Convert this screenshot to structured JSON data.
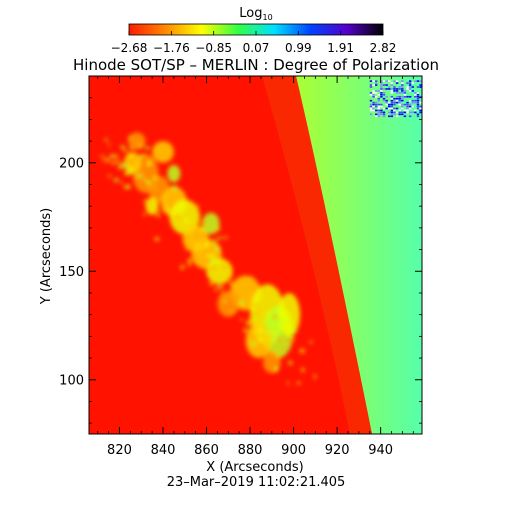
{
  "chart_data": {
    "type": "heatmap",
    "title": "Hinode SOT/SP – MERLIN : Degree of Polarization",
    "xlabel": "X (Arcseconds)",
    "ylabel": "Y (Arcseconds)",
    "timestamp": "23–Mar–2019 11:02:21.405",
    "xlim": [
      806,
      959
    ],
    "ylim": [
      75,
      240
    ],
    "x_ticks": [
      820,
      840,
      860,
      880,
      900,
      920,
      940
    ],
    "y_ticks": [
      100,
      150,
      200
    ],
    "colorbar": {
      "label": "Log",
      "label_subscript": "10",
      "min": -2.68,
      "max": 2.82,
      "ticks": [
        "−2.68",
        "−1.76",
        "−0.85",
        "0.07",
        "0.99",
        "1.91",
        "2.82"
      ],
      "stops": [
        "#ff1a00",
        "#ff8800",
        "#ffff00",
        "#33ff44",
        "#00e0ff",
        "#0044ff",
        "#5500cc",
        "#000000"
      ]
    },
    "regions": {
      "disk_color": "#ff1200",
      "limb_band_color": "#f43a00",
      "offlimb_color_inner": "#aaff33",
      "offlimb_color_outer": "#55ffaa",
      "plage_colors": [
        "#ff9a00",
        "#ffd000",
        "#eeff00",
        "#bbff22"
      ],
      "noise_colors": [
        "#0000ff",
        "#4444ff",
        "#ffffff",
        "#8888ff"
      ]
    }
  }
}
